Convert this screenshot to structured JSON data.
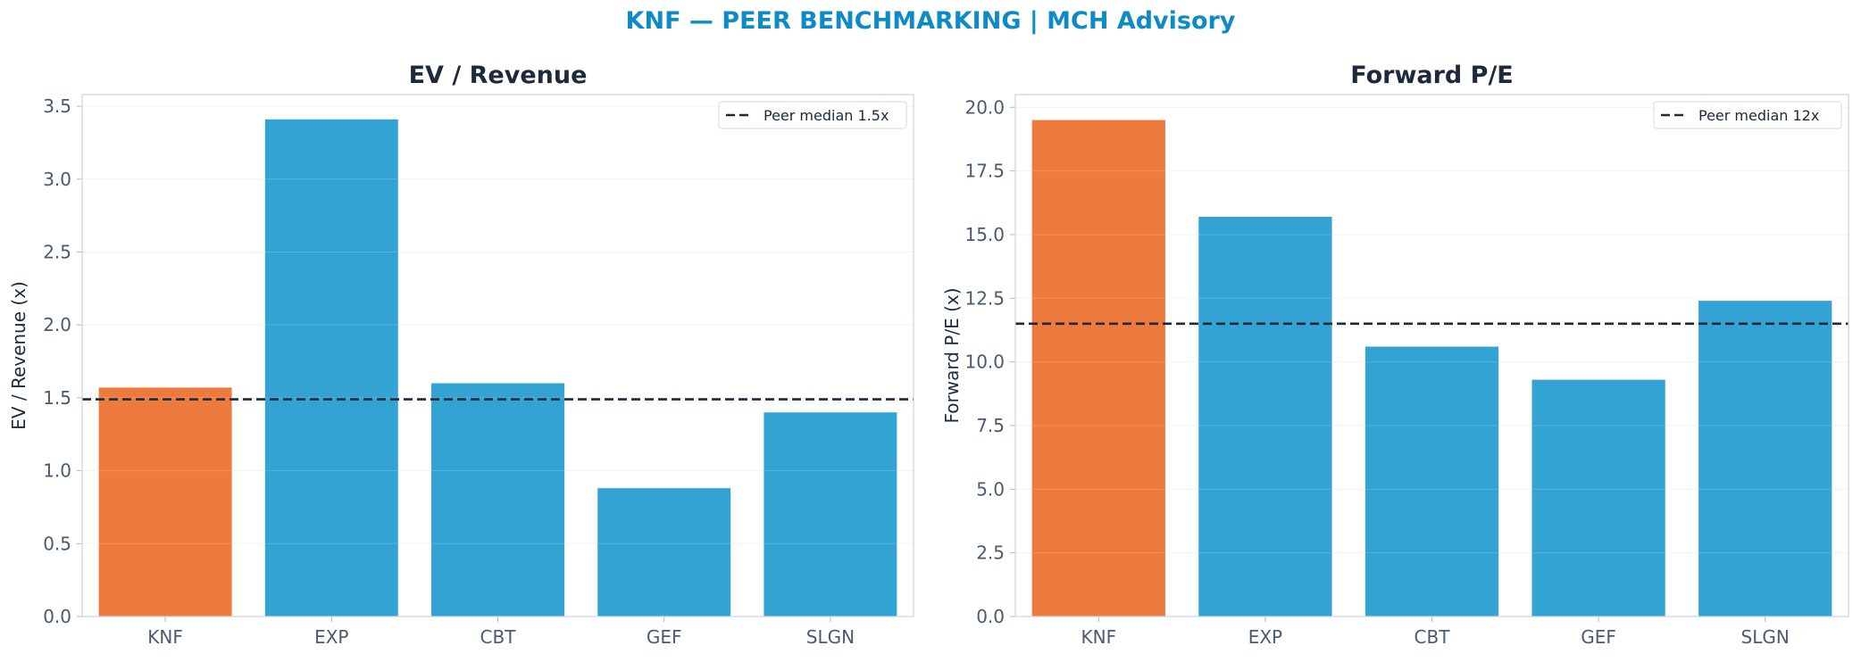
{
  "suptitle": "KNF — PEER BENCHMARKING | MCH Advisory",
  "colors": {
    "title": "#0e8ac6",
    "highlight": "#ee7b3e",
    "peer": "#33a3d4",
    "median": "#1c2a3c"
  },
  "chart_data": [
    {
      "type": "bar",
      "title": "EV / Revenue",
      "xlabel": "",
      "ylabel": "EV / Revenue (x)",
      "categories": [
        "KNF",
        "EXP",
        "CBT",
        "GEF",
        "SLGN"
      ],
      "values": [
        1.57,
        3.41,
        1.6,
        0.88,
        1.4
      ],
      "highlight_index": 0,
      "ylim": [
        0,
        3.58
      ],
      "yticks": [
        0.0,
        0.5,
        1.0,
        1.5,
        2.0,
        2.5,
        3.0,
        3.5
      ],
      "tick_decimals": 1,
      "median_line": {
        "value": 1.49,
        "label": "Peer median 1.5x"
      },
      "legend_position": "top-right",
      "grid": true
    },
    {
      "type": "bar",
      "title": "Forward P/E",
      "xlabel": "",
      "ylabel": "Forward P/E (x)",
      "categories": [
        "KNF",
        "EXP",
        "CBT",
        "GEF",
        "SLGN"
      ],
      "values": [
        19.5,
        15.7,
        10.6,
        9.3,
        12.4
      ],
      "highlight_index": 0,
      "ylim": [
        0,
        20.5
      ],
      "yticks": [
        0.0,
        2.5,
        5.0,
        7.5,
        10.0,
        12.5,
        15.0,
        17.5,
        20.0
      ],
      "tick_decimals": 1,
      "median_line": {
        "value": 11.5,
        "label": "Peer median 12x"
      },
      "legend_position": "top-right",
      "grid": true
    }
  ]
}
